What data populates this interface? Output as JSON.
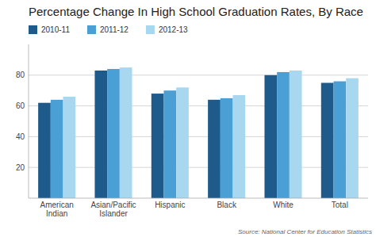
{
  "chart_data": {
    "type": "bar",
    "title": "Percentage Change In High School Graduation Rates, By Race",
    "source": "Source: National Center for Education Statistics",
    "categories": [
      "American\nIndian",
      "Asian/Pacific\nIslander",
      "Hispanic",
      "Black",
      "White",
      "Total"
    ],
    "series": [
      {
        "name": "2010-11",
        "color": "#1e5a8a",
        "values": [
          62,
          83,
          68,
          64,
          80,
          75
        ]
      },
      {
        "name": "2011-12",
        "color": "#4a9fd4",
        "values": [
          64,
          84,
          70,
          65,
          82,
          76
        ]
      },
      {
        "name": "2012-13",
        "color": "#a8d8f0",
        "values": [
          66,
          85,
          72,
          67,
          83,
          78
        ]
      }
    ],
    "ylim": [
      0,
      100
    ],
    "yticks": [
      20,
      40,
      60,
      80
    ],
    "grid": true,
    "legend": "top-left"
  }
}
